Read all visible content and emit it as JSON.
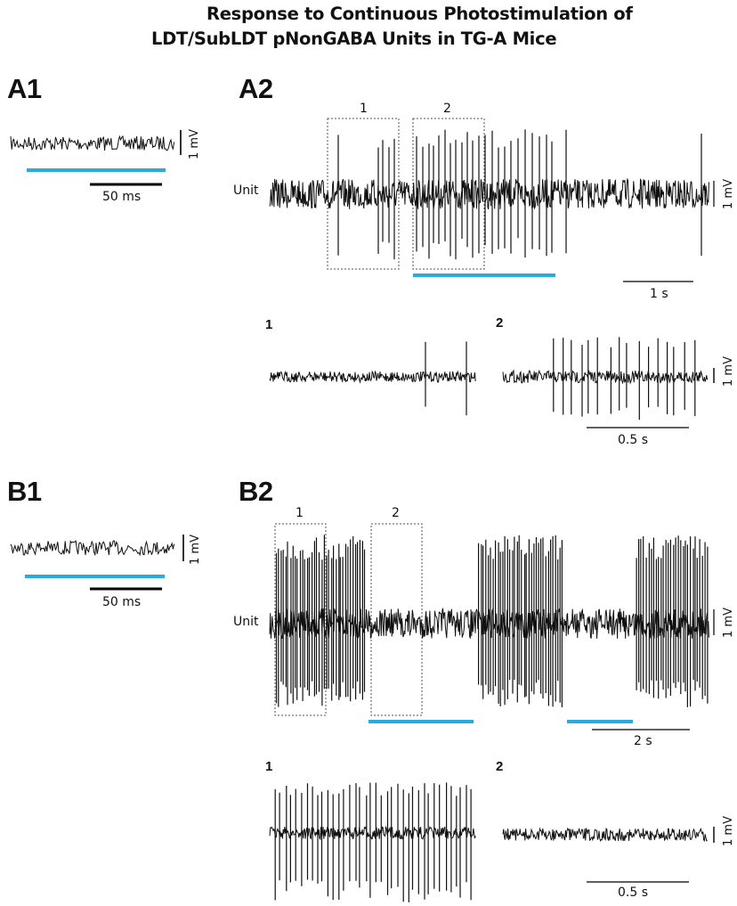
{
  "title": {
    "line1": "Response to Continuous Photostimulation of",
    "line2": "LDT/SubLDT pNonGABA Units in TG-A Mice"
  },
  "panels": {
    "A1": {
      "label": "A1",
      "scale_v": "1 mV",
      "scale_t": "50 ms"
    },
    "A2": {
      "label": "A2",
      "unit_label": "Unit",
      "scale_v": "1 mV",
      "scale_t": "1 s",
      "box1": "1",
      "box2": "2",
      "inset1_label": "1",
      "inset2_label": "2",
      "inset_scale_v": "1 mV",
      "inset_scale_t": "0.5 s"
    },
    "B1": {
      "label": "B1",
      "scale_v": "1 mV",
      "scale_t": "50 ms"
    },
    "B2": {
      "label": "B2",
      "unit_label": "Unit",
      "scale_v": "1 mV",
      "scale_t": "2 s",
      "box1": "1",
      "box2": "2",
      "inset1_label": "1",
      "inset2_label": "2",
      "inset_scale_v": "1 mV",
      "inset_scale_t": "0.5 s"
    }
  },
  "colors": {
    "trace": "#111111",
    "photostimulation": "#29abe2",
    "box": "#555555"
  }
}
